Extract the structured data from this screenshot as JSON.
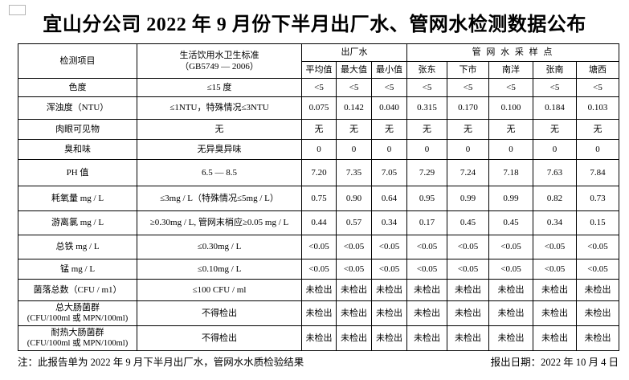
{
  "title": "宜山分公司 2022 年 9 月份下半月出厂水、管网水检测数据公布",
  "table": {
    "header": {
      "item_col": "检测项目",
      "standard_line1": "生活饮用水卫生标准",
      "standard_line2": "（GB5749 — 2006）",
      "factory_group": "出厂水",
      "network_group": "管 网 水 采 样 点",
      "factory_cols": [
        "平均值",
        "最大值",
        "最小值"
      ],
      "network_cols": [
        "张东",
        "下市",
        "南洋",
        "张南",
        "塘西"
      ]
    },
    "rows": [
      {
        "item": "色度",
        "standard": "≤15 度",
        "values": [
          "<5",
          "<5",
          "<5",
          "<5",
          "<5",
          "<5",
          "<5",
          "<5"
        ]
      },
      {
        "item": "浑浊度（NTU）",
        "standard": "≤1NTU，特殊情况≤3NTU",
        "values": [
          "0.075",
          "0.142",
          "0.040",
          "0.315",
          "0.170",
          "0.100",
          "0.184",
          "0.103"
        ]
      },
      {
        "item": "肉眼可见物",
        "standard": "无",
        "values": [
          "无",
          "无",
          "无",
          "无",
          "无",
          "无",
          "无",
          "无"
        ]
      },
      {
        "item": "臭和味",
        "standard": "无异臭异味",
        "values": [
          "0",
          "0",
          "0",
          "0",
          "0",
          "0",
          "0",
          "0"
        ]
      },
      {
        "item": "PH 值",
        "standard": "6.5 — 8.5",
        "values": [
          "7.20",
          "7.35",
          "7.05",
          "7.29",
          "7.24",
          "7.18",
          "7.63",
          "7.84"
        ]
      },
      {
        "item": "耗氧量 mg / L",
        "standard": "≤3mg / L（特殊情况≤5mg / L）",
        "values": [
          "0.75",
          "0.90",
          "0.64",
          "0.95",
          "0.99",
          "0.99",
          "0.82",
          "0.73"
        ]
      },
      {
        "item": "游离氯 mg / L",
        "standard": "≥0.30mg / L, 管网末梢应≥0.05 mg / L",
        "values": [
          "0.44",
          "0.57",
          "0.34",
          "0.17",
          "0.45",
          "0.45",
          "0.34",
          "0.15"
        ]
      },
      {
        "item": "总铁 mg / L",
        "standard": "≤0.30mg / L",
        "values": [
          "<0.05",
          "<0.05",
          "<0.05",
          "<0.05",
          "<0.05",
          "<0.05",
          "<0.05",
          "<0.05"
        ]
      },
      {
        "item": "锰 mg / L",
        "standard": "≤0.10mg / L",
        "values": [
          "<0.05",
          "<0.05",
          "<0.05",
          "<0.05",
          "<0.05",
          "<0.05",
          "<0.05",
          "<0.05"
        ]
      },
      {
        "item": "菌落总数（CFU / m1）",
        "standard": "≤100 CFU / ml",
        "values": [
          "未检出",
          "未检出",
          "未检出",
          "未检出",
          "未检出",
          "未检出",
          "未检出",
          "未检出"
        ]
      },
      {
        "item": "总大肠菌群",
        "item_sub": "(CFU/100ml 或 MPN/100ml)",
        "standard": "不得检出",
        "values": [
          "未检出",
          "未检出",
          "未检出",
          "未检出",
          "未检出",
          "未检出",
          "未检出",
          "未检出"
        ]
      },
      {
        "item": "耐热大肠菌群",
        "item_sub": "(CFU/100ml 或 MPN/100ml)",
        "standard": "不得检出",
        "values": [
          "未检出",
          "未检出",
          "未检出",
          "未检出",
          "未检出",
          "未检出",
          "未检出",
          "未检出"
        ]
      }
    ]
  },
  "footer": {
    "note": "注：此报告单为 2022 年 9 月下半月出厂水，管网水水质检验结果",
    "date": "报出日期：2022 年 10 月 4 日"
  }
}
